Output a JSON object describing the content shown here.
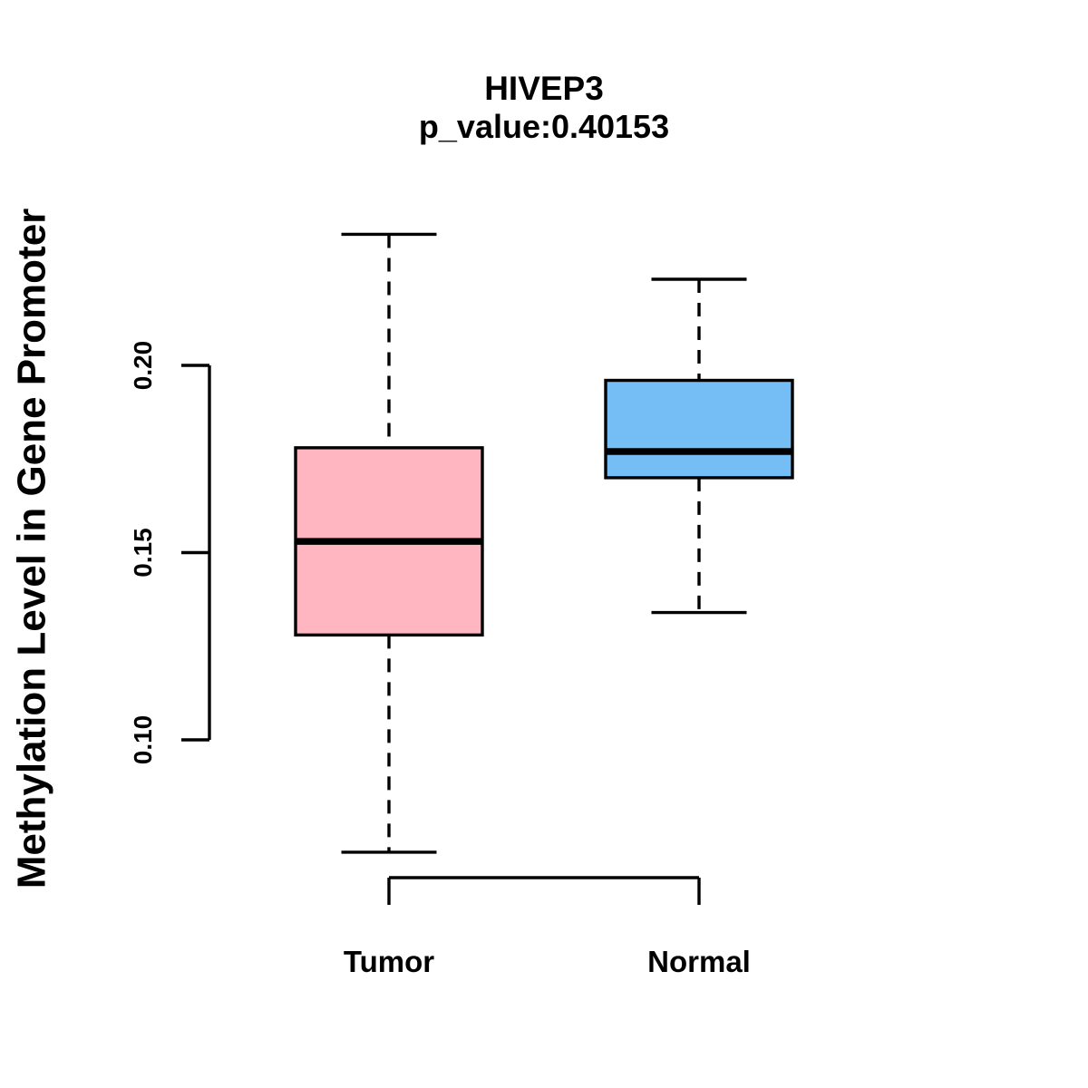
{
  "chart_data": {
    "type": "boxplot",
    "title": "HIVEP3",
    "subtitle": "p_value:0.40153",
    "ylabel": "Methylation Level in Gene Promoter",
    "xlabel": "",
    "categories": [
      "Tumor",
      "Normal"
    ],
    "yticks": [
      {
        "value": 0.1,
        "label": "0.10"
      },
      {
        "value": 0.15,
        "label": "0.15"
      },
      {
        "value": 0.2,
        "label": "0.20"
      }
    ],
    "y_axis_range": [
      0.1,
      0.2
    ],
    "grid": "off",
    "legend": "none",
    "series": [
      {
        "name": "Tumor",
        "color": "#FFB6C1",
        "lower_whisker": 0.07,
        "q1": 0.128,
        "median": 0.153,
        "q3": 0.178,
        "upper_whisker": 0.235
      },
      {
        "name": "Normal",
        "color": "#74BEF5",
        "lower_whisker": 0.134,
        "q1": 0.17,
        "median": 0.177,
        "q3": 0.196,
        "upper_whisker": 0.223
      }
    ],
    "line_color": "#000000",
    "background_color": "#FFFFFF"
  }
}
